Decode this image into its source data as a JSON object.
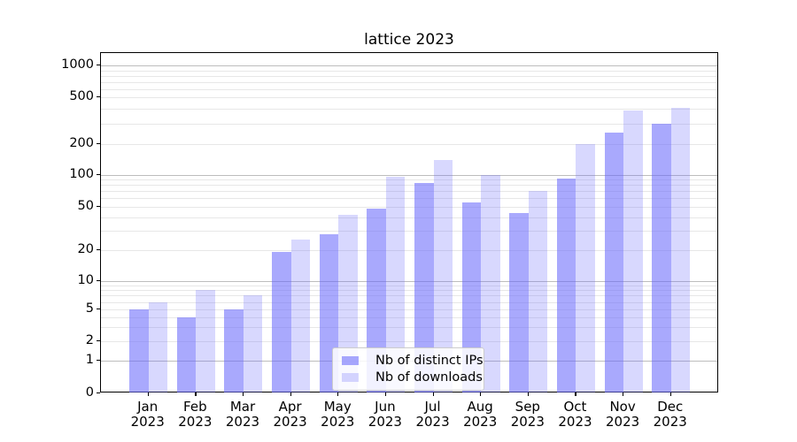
{
  "title": "lattice 2023",
  "chart_data": {
    "type": "bar",
    "title": "lattice 2023",
    "categories": [
      "Jan 2023",
      "Feb 2023",
      "Mar 2023",
      "Apr 2023",
      "May 2023",
      "Jun 2023",
      "Jul 2023",
      "Aug 2023",
      "Sep 2023",
      "Oct 2023",
      "Nov 2023",
      "Dec 2023"
    ],
    "series": [
      {
        "name": "Nb of distinct IPs",
        "color": "rgba(103,103,252,0.57)",
        "values": [
          5,
          4,
          5,
          19,
          28,
          48,
          84,
          55,
          44,
          92,
          250,
          300
        ]
      },
      {
        "name": "Nb of downloads",
        "color": "rgba(103,103,252,0.26)",
        "values": [
          6,
          8,
          7,
          25,
          42,
          95,
          140,
          100,
          70,
          200,
          385,
          410
        ]
      }
    ],
    "ylabel": "",
    "xlabel": "",
    "yscale": "symlog",
    "ylim": [
      0,
      1300
    ],
    "yticks": [
      0,
      1,
      2,
      5,
      10,
      20,
      50,
      100,
      200,
      500,
      1000
    ],
    "grid": true,
    "legend_position": "bottom-center"
  },
  "colors": {
    "bar_dark": "#a9a9fc",
    "bar_light": "#d8d8fd",
    "grid_major": "#bdbdbd",
    "grid_minor": "#e7e7e7",
    "spine": "#000000"
  }
}
